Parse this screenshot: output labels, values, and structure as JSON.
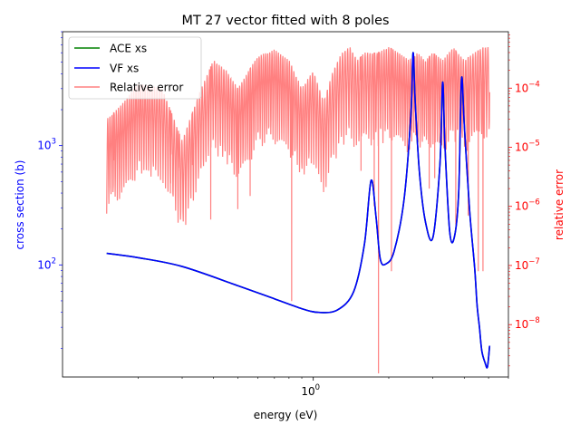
{
  "chart_data": {
    "type": "line",
    "title": "MT 27 vector fitted with 8 poles",
    "xlabel": "energy (eV)",
    "ylabel": "cross section (b)",
    "y2label": "relative error",
    "xscale": "log",
    "yscale": "log",
    "y2scale": "log",
    "xlim": [
      0.1,
      6.0
    ],
    "ylim": [
      11.5,
      9000
    ],
    "y2lim": [
      1.3e-09,
      0.0009
    ],
    "grid": false,
    "legend": "top-left",
    "colors": {
      "ace": "#008000",
      "vf": "#0000ff",
      "error": "#ff8080",
      "left_axis": "#0000ff",
      "right_axis": "#ff0000"
    },
    "x_ticks": [
      {
        "value": 1.0,
        "label": "10",
        "exp": "0"
      }
    ],
    "y_ticks": [
      {
        "value": 100,
        "label": "10",
        "exp": "2"
      },
      {
        "value": 1000,
        "label": "10",
        "exp": "3"
      }
    ],
    "y2_ticks": [
      {
        "value": 1e-08,
        "label": "10",
        "exp": "−8"
      },
      {
        "value": 1e-07,
        "label": "10",
        "exp": "−7"
      },
      {
        "value": 1e-06,
        "label": "10",
        "exp": "−6"
      },
      {
        "value": 1e-05,
        "label": "10",
        "exp": "−5"
      },
      {
        "value": 0.0001,
        "label": "10",
        "exp": "−4"
      }
    ],
    "series": [
      {
        "name": "ACE xs",
        "axis": "left",
        "x": [
          0.15,
          0.2,
          0.3,
          0.5,
          0.7,
          0.9,
          1.05,
          1.25,
          1.45,
          1.6,
          1.7,
          1.78,
          1.85,
          1.95,
          2.1,
          2.3,
          2.45,
          2.5,
          2.55,
          2.65,
          2.8,
          3.0,
          3.2,
          3.28,
          3.35,
          3.5,
          3.65,
          3.8,
          3.9,
          4.0,
          4.2,
          4.4,
          4.5,
          4.6,
          4.7,
          4.85,
          4.95,
          5.05
        ],
        "y": [
          125,
          115,
          97,
          67,
          52,
          43,
          40,
          42,
          60,
          150,
          510,
          250,
          112,
          102,
          130,
          350,
          1800,
          6000,
          2300,
          600,
          230,
          170,
          700,
          3400,
          1000,
          190,
          170,
          400,
          3600,
          1500,
          290,
          95,
          46,
          30,
          19,
          15,
          14,
          21
        ]
      },
      {
        "name": "VF xs",
        "axis": "left",
        "x": [
          0.15,
          0.2,
          0.3,
          0.5,
          0.7,
          0.9,
          1.05,
          1.25,
          1.45,
          1.6,
          1.7,
          1.78,
          1.85,
          1.95,
          2.1,
          2.3,
          2.45,
          2.5,
          2.55,
          2.65,
          2.8,
          3.0,
          3.2,
          3.28,
          3.35,
          3.5,
          3.65,
          3.8,
          3.9,
          4.0,
          4.2,
          4.4,
          4.5,
          4.6,
          4.7,
          4.85,
          4.95,
          5.05
        ],
        "y": [
          125,
          115,
          97,
          67,
          52,
          43,
          40,
          42,
          60,
          150,
          510,
          250,
          112,
          102,
          130,
          350,
          1800,
          6000,
          2300,
          600,
          230,
          170,
          700,
          3400,
          1000,
          190,
          170,
          400,
          3600,
          1500,
          290,
          95,
          46,
          30,
          19,
          15,
          14,
          21
        ]
      },
      {
        "name": "Relative error",
        "axis": "right",
        "x_range": [
          0.15,
          5.05
        ],
        "envelope": [
          [
            0.15,
            3e-05
          ],
          [
            0.17,
            5e-05
          ],
          [
            0.2,
            0.00012
          ],
          [
            0.25,
            0.0001
          ],
          [
            0.3,
            1.3e-05
          ],
          [
            0.35,
            8e-05
          ],
          [
            0.4,
            0.0003
          ],
          [
            0.45,
            0.0002
          ],
          [
            0.5,
            0.0001
          ],
          [
            0.6,
            0.00035
          ],
          [
            0.7,
            0.00045
          ],
          [
            0.8,
            0.0003
          ],
          [
            0.9,
            0.0001
          ],
          [
            1.0,
            0.0002
          ],
          [
            1.1,
            6e-05
          ],
          [
            1.2,
            0.0002
          ],
          [
            1.3,
            0.0004
          ],
          [
            1.4,
            0.0005
          ],
          [
            1.5,
            0.0003
          ],
          [
            1.6,
            0.0004
          ],
          [
            1.8,
            0.0004
          ],
          [
            2.0,
            0.0005
          ],
          [
            2.2,
            0.0004
          ],
          [
            2.4,
            0.0003
          ],
          [
            2.6,
            0.0004
          ],
          [
            2.8,
            0.0003
          ],
          [
            3.0,
            0.0004
          ],
          [
            3.3,
            0.0003
          ],
          [
            3.6,
            0.0005
          ],
          [
            4.0,
            0.0003
          ],
          [
            4.4,
            0.0004
          ],
          [
            4.8,
            0.0005
          ],
          [
            5.05,
            0.0005
          ]
        ],
        "dips": [
          [
            0.16,
            8e-06
          ],
          [
            0.16,
            6e-06
          ],
          [
            0.27,
            5e-06
          ],
          [
            0.29,
            4e-06
          ],
          [
            0.33,
            5e-06
          ],
          [
            0.39,
            6e-07
          ],
          [
            0.5,
            9e-07
          ],
          [
            0.56,
            1.5e-06
          ],
          [
            0.82,
            2.5e-08
          ],
          [
            1.55,
            4e-06
          ],
          [
            1.75,
            1e-06
          ],
          [
            1.82,
            1.5e-09
          ],
          [
            2.05,
            8e-08
          ],
          [
            2.9,
            2e-06
          ],
          [
            3.05,
            3e-06
          ],
          [
            3.7,
            5e-07
          ],
          [
            4.15,
            7e-07
          ],
          [
            4.55,
            8e-08
          ],
          [
            4.75,
            8e-08
          ]
        ]
      }
    ]
  }
}
